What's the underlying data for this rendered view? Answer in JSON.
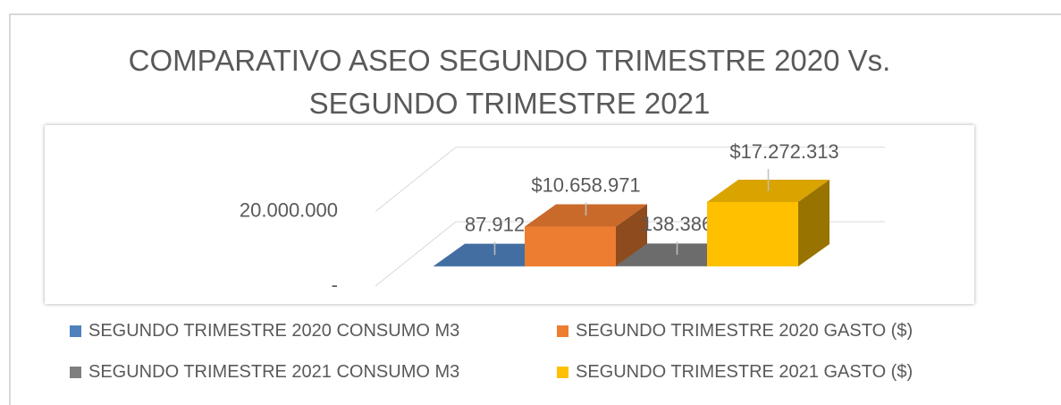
{
  "chart_data": {
    "type": "bar3d",
    "title": "COMPARATIVO ASEO SEGUNDO TRIMESTRE 2020 Vs. SEGUNDO TRIMESTRE 2021",
    "series": [
      {
        "name": "SEGUNDO TRIMESTRE 2020 CONSUMO M3",
        "color": "#4f81bd",
        "values": [
          87912
        ],
        "value_labels": [
          "87.912"
        ]
      },
      {
        "name": "SEGUNDO TRIMESTRE 2020 GASTO ($)",
        "color": "#ed7d31",
        "values": [
          10658971
        ],
        "value_labels": [
          "$10.658.971"
        ]
      },
      {
        "name": "SEGUNDO TRIMESTRE 2021 CONSUMO M3",
        "color": "#7f7f7f",
        "values": [
          138386
        ],
        "value_labels": [
          "138.386"
        ]
      },
      {
        "name": "SEGUNDO TRIMESTRE 2021 GASTO ($)",
        "color": "#ffc000",
        "values": [
          17272313
        ],
        "value_labels": [
          "$17.272.313"
        ]
      }
    ],
    "ylim": [
      0,
      20000000
    ],
    "yticks": [
      {
        "value": 0,
        "label": "-"
      },
      {
        "value": 20000000,
        "label": "20.000.000"
      }
    ],
    "grid": true,
    "legend": "bottom"
  }
}
